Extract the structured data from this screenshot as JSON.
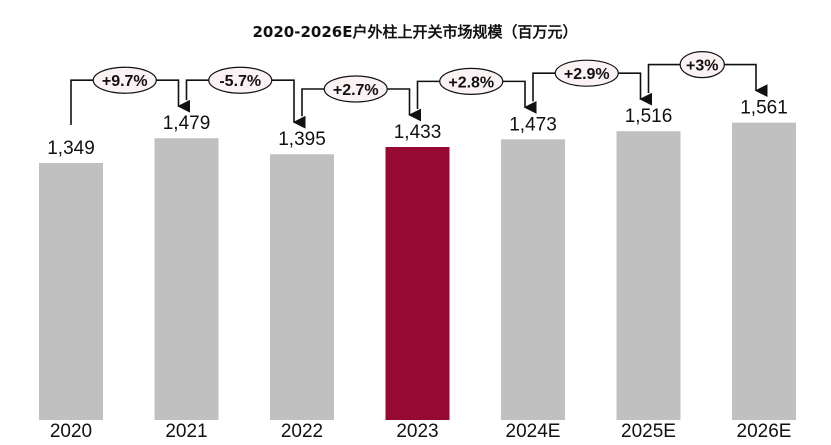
{
  "chart_data": {
    "type": "bar",
    "title": "2020-2026E户外柱上开关市场规模（百万元）",
    "categories": [
      "2020",
      "2021",
      "2022",
      "2023",
      "2024E",
      "2025E",
      "2026E"
    ],
    "values": [
      1349,
      1479,
      1395,
      1433,
      1473,
      1516,
      1561
    ],
    "value_labels": [
      "1,349",
      "1,479",
      "1,395",
      "1,433",
      "1,473",
      "1,516",
      "1,561"
    ],
    "growth_labels": [
      "+9.7%",
      "-5.7%",
      "+2.7%",
      "+2.8%",
      "+2.9%",
      "+3%"
    ],
    "highlight_index": 3,
    "colors": {
      "bar": "#c0c0c0",
      "highlight": "#960a32",
      "bubble_fill": "#fbf3f3",
      "bubble_stroke": "#111111"
    },
    "ylim": [
      0,
      1700
    ],
    "grid": false,
    "legend": "none"
  }
}
